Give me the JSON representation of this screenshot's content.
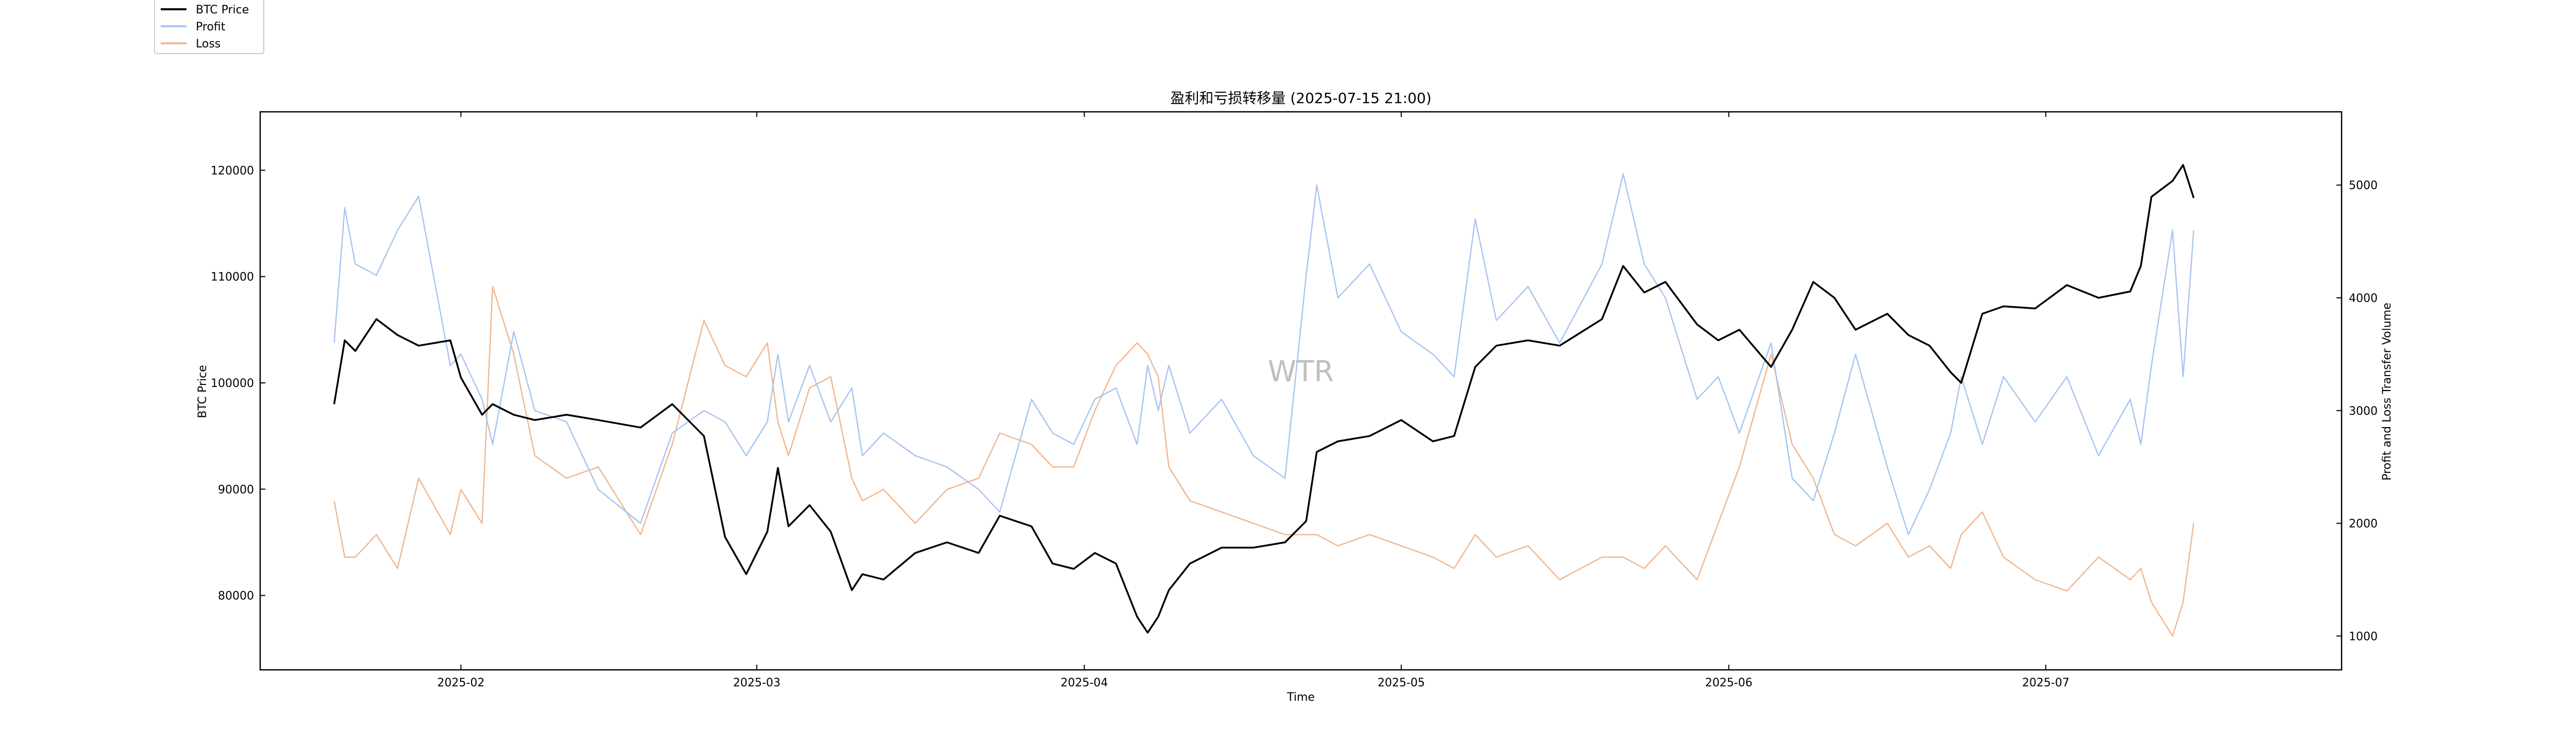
{
  "chart_data": {
    "type": "line",
    "title": "盈利和亏损转移量 (2025-07-15 21:00)",
    "xlabel": "Time",
    "ylabel_left": "BTC Price",
    "ylabel_right": "Profit and Loss Transfer Volume",
    "watermark": "WTR",
    "grid": false,
    "legend_position": "top-left",
    "x_tick_labels": [
      "2025-02",
      "2025-03",
      "2025-04",
      "2025-05",
      "2025-06",
      "2025-07"
    ],
    "y_left_ticks": [
      80000,
      90000,
      100000,
      110000,
      120000
    ],
    "y_right_ticks": [
      1000,
      2000,
      3000,
      4000,
      5000
    ],
    "xlim": [
      "2025-01-13",
      "2025-07-29"
    ],
    "ylim_left": [
      73000,
      125500
    ],
    "ylim_right": [
      700,
      5650
    ],
    "x": [
      "2025-01-20",
      "2025-01-21",
      "2025-01-22",
      "2025-01-24",
      "2025-01-26",
      "2025-01-28",
      "2025-01-31",
      "2025-02-01",
      "2025-02-03",
      "2025-02-04",
      "2025-02-06",
      "2025-02-08",
      "2025-02-11",
      "2025-02-14",
      "2025-02-18",
      "2025-02-21",
      "2025-02-24",
      "2025-02-26",
      "2025-02-28",
      "2025-03-02",
      "2025-03-03",
      "2025-03-04",
      "2025-03-06",
      "2025-03-08",
      "2025-03-10",
      "2025-03-11",
      "2025-03-13",
      "2025-03-16",
      "2025-03-19",
      "2025-03-22",
      "2025-03-24",
      "2025-03-27",
      "2025-03-29",
      "2025-03-31",
      "2025-04-02",
      "2025-04-04",
      "2025-04-06",
      "2025-04-07",
      "2025-04-08",
      "2025-04-09",
      "2025-04-11",
      "2025-04-14",
      "2025-04-17",
      "2025-04-20",
      "2025-04-22",
      "2025-04-23",
      "2025-04-25",
      "2025-04-28",
      "2025-05-01",
      "2025-05-04",
      "2025-05-06",
      "2025-05-08",
      "2025-05-10",
      "2025-05-13",
      "2025-05-16",
      "2025-05-20",
      "2025-05-22",
      "2025-05-24",
      "2025-05-26",
      "2025-05-29",
      "2025-05-31",
      "2025-06-02",
      "2025-06-05",
      "2025-06-07",
      "2025-06-09",
      "2025-06-11",
      "2025-06-13",
      "2025-06-16",
      "2025-06-18",
      "2025-06-20",
      "2025-06-22",
      "2025-06-23",
      "2025-06-25",
      "2025-06-27",
      "2025-06-30",
      "2025-07-03",
      "2025-07-06",
      "2025-07-09",
      "2025-07-10",
      "2025-07-11",
      "2025-07-13",
      "2025-07-14",
      "2025-07-15"
    ],
    "series": [
      {
        "name": "BTC Price",
        "axis": "left",
        "color": "#000000",
        "values": [
          98000,
          104000,
          103000,
          106000,
          104500,
          103500,
          104000,
          100500,
          97000,
          98000,
          97000,
          96500,
          97000,
          96500,
          95800,
          98000,
          95000,
          85500,
          82000,
          86000,
          92000,
          86500,
          88500,
          86000,
          80500,
          82000,
          81500,
          84000,
          85000,
          84000,
          87500,
          86500,
          83000,
          82500,
          84000,
          83000,
          78000,
          76500,
          78000,
          80500,
          83000,
          84500,
          84500,
          85000,
          87000,
          93500,
          94500,
          95000,
          96500,
          94500,
          95000,
          101500,
          103500,
          104000,
          103500,
          106000,
          111000,
          108500,
          109500,
          105500,
          104000,
          105000,
          101500,
          105000,
          109500,
          108000,
          105000,
          106500,
          104500,
          103500,
          101000,
          100000,
          106500,
          107200,
          107000,
          109200,
          108000,
          108600,
          111000,
          117500,
          119000,
          120500,
          117400
        ]
      },
      {
        "name": "Profit",
        "axis": "right",
        "color": "#a8c6f0",
        "values": [
          3600,
          4800,
          4300,
          4200,
          4600,
          4900,
          3400,
          3500,
          3100,
          2700,
          3700,
          3000,
          2900,
          2300,
          2000,
          2800,
          3000,
          2900,
          2600,
          2900,
          3500,
          2900,
          3400,
          2900,
          3200,
          2600,
          2800,
          2600,
          2500,
          2300,
          2100,
          3100,
          2800,
          2700,
          3100,
          3200,
          2700,
          3400,
          3000,
          3400,
          2800,
          3100,
          2600,
          2400,
          4200,
          5000,
          4000,
          4300,
          3700,
          3500,
          3300,
          4700,
          3800,
          4100,
          3600,
          4300,
          5100,
          4300,
          4000,
          3100,
          3300,
          2800,
          3600,
          2400,
          2200,
          2800,
          3500,
          2500,
          1900,
          2300,
          2800,
          3300,
          2700,
          3300,
          2900,
          3300,
          2600,
          3100,
          2700,
          3400,
          4600,
          3300,
          4600
        ]
      },
      {
        "name": "Loss",
        "axis": "right",
        "color": "#f0b890",
        "values": [
          2200,
          1700,
          1700,
          1900,
          1600,
          2400,
          1900,
          2300,
          2000,
          4100,
          3500,
          2600,
          2400,
          2500,
          1900,
          2700,
          3800,
          3400,
          3300,
          3600,
          2900,
          2600,
          3200,
          3300,
          2400,
          2200,
          2300,
          2000,
          2300,
          2400,
          2800,
          2700,
          2500,
          2500,
          3000,
          3400,
          3600,
          3500,
          3300,
          2500,
          2200,
          2100,
          2000,
          1900,
          1900,
          1900,
          1800,
          1900,
          1800,
          1700,
          1600,
          1900,
          1700,
          1800,
          1500,
          1700,
          1700,
          1600,
          1800,
          1500,
          2000,
          2500,
          3500,
          2700,
          2400,
          1900,
          1800,
          2000,
          1700,
          1800,
          1600,
          1900,
          2100,
          1700,
          1500,
          1400,
          1700,
          1500,
          1600,
          1300,
          1000,
          1300,
          2000
        ]
      }
    ]
  }
}
